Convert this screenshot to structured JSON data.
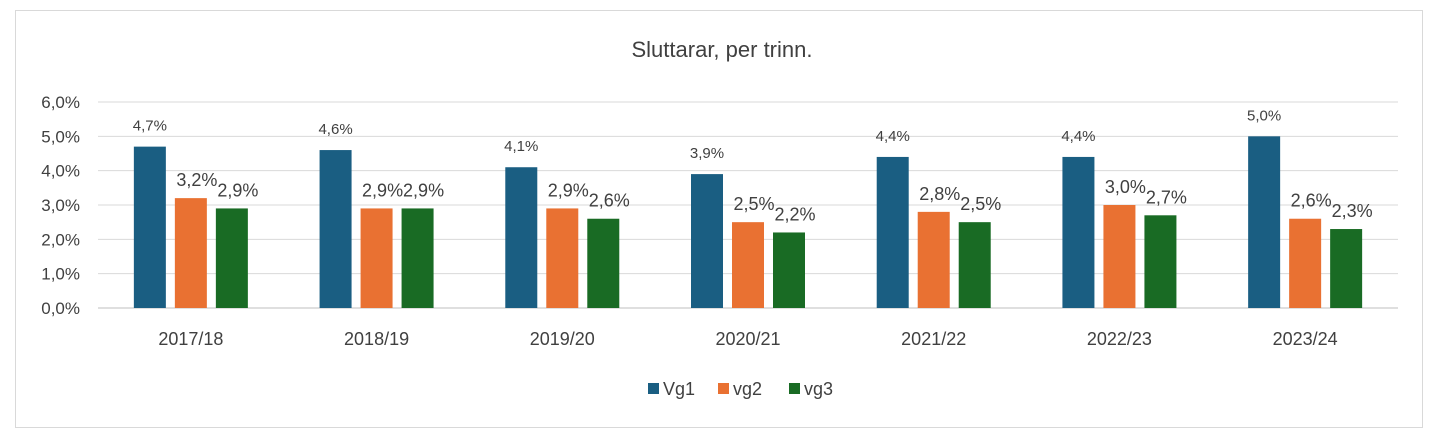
{
  "chart_data": {
    "type": "bar",
    "title": "Sluttarar, per trinn.",
    "xlabel": "",
    "ylabel": "",
    "ylim": [
      0,
      6
    ],
    "yticks": [
      "0,0%",
      "1,0%",
      "2,0%",
      "3,0%",
      "4,0%",
      "5,0%",
      "6,0%"
    ],
    "grid": true,
    "legend_position": "bottom",
    "categories": [
      "2017/18",
      "2018/19",
      "2019/20",
      "2020/21",
      "2021/22",
      "2022/23",
      "2023/24"
    ],
    "series": [
      {
        "name": "Vg1",
        "color": "#1a5e82",
        "values": [
          4.7,
          4.6,
          4.1,
          3.9,
          4.4,
          4.4,
          5.0
        ],
        "labels": [
          "4,7%",
          "4,6%",
          "4,1%",
          "3,9%",
          "4,4%",
          "4,4%",
          "5,0%"
        ]
      },
      {
        "name": "vg2",
        "color": "#e97132",
        "values": [
          3.2,
          2.9,
          2.9,
          2.5,
          2.8,
          3.0,
          2.6
        ],
        "labels": [
          "3,2%",
          "2,9%",
          "2,9%",
          "2,5%",
          "2,8%",
          "3,0%",
          "2,6%"
        ]
      },
      {
        "name": "vg3",
        "color": "#196b24",
        "values": [
          2.9,
          2.9,
          2.6,
          2.2,
          2.5,
          2.7,
          2.3
        ],
        "labels": [
          "2,9%",
          "2,9%",
          "2,6%",
          "2,2%",
          "2,5%",
          "2,7%",
          "2,3%"
        ]
      }
    ]
  }
}
